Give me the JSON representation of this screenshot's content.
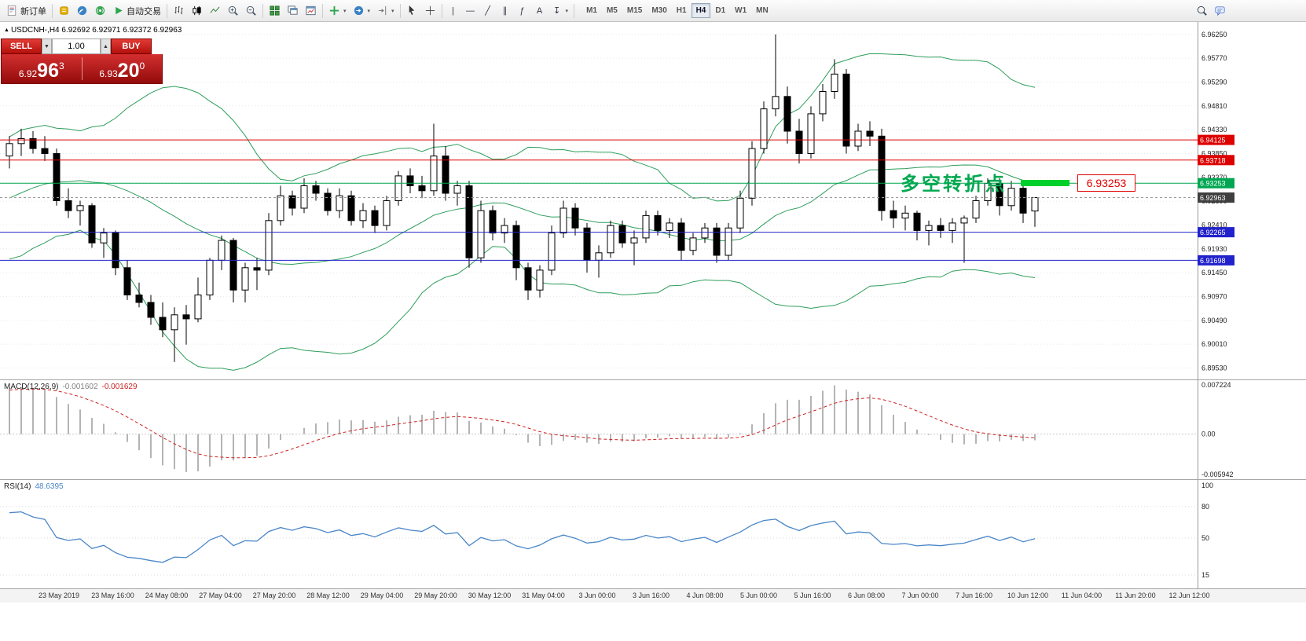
{
  "toolbar": {
    "new_order_label": "新订单",
    "autotrading_label": "自动交易",
    "caret_glyph": "▾",
    "timeframes": [
      "M1",
      "M5",
      "M15",
      "M30",
      "H1",
      "H4",
      "D1",
      "W1",
      "MN"
    ],
    "active_timeframe": "H4",
    "tool_glyphs": {
      "vertical_line": "|",
      "horizontal_line": "—",
      "trendline": "╱",
      "channel": "∥",
      "fibonacci": "ƒ",
      "text": "A",
      "arrows": "↧"
    }
  },
  "chart_header": {
    "marker": "▲",
    "text": "USDCNH-,H4  6.92692 6.92971 6.92372 6.92963"
  },
  "trade_panel": {
    "sell_label": "SELL",
    "buy_label": "BUY",
    "volume": "1.00",
    "step_down_glyph": "▼",
    "step_up_glyph": "▲",
    "sell_price_prefix": "6.92",
    "sell_price_big": "96",
    "sell_price_sup": "3",
    "buy_price_prefix": "6.93",
    "buy_price_big": "20",
    "buy_price_sup": "0"
  },
  "annotation": {
    "label": "多空转折点",
    "callout_price": "6.93253"
  },
  "indicator_labels": {
    "macd_name": "MACD(12,26,9)",
    "macd_value1": "-0.001602",
    "macd_value2": "-0.001629",
    "rsi_name": "RSI(14)",
    "rsi_value": "48.6395"
  },
  "chart_data": {
    "type": "candlestick",
    "symbol": "USDCNH-",
    "timeframe": "H4",
    "ohlc": {
      "open": 6.92692,
      "high": 6.92971,
      "low": 6.92372,
      "close": 6.92963
    },
    "price_axis": {
      "view_max": 6.965,
      "view_min": 6.893,
      "ticks": [
        6.9625,
        6.9577,
        6.9529,
        6.9481,
        6.9433,
        6.9385,
        6.9337,
        6.9289,
        6.9241,
        6.9193,
        6.9145,
        6.9097,
        6.9049,
        6.9001,
        6.8953
      ]
    },
    "hlines": [
      {
        "price": 6.94125,
        "label": "6.94125",
        "color": "#dd0000"
      },
      {
        "price": 6.93718,
        "label": "6.93718",
        "color": "#dd0000"
      },
      {
        "price": 6.93253,
        "label": "6.93253",
        "color": "#00a651"
      },
      {
        "price": 6.92265,
        "label": "6.92265",
        "color": "#2222cc"
      },
      {
        "price": 6.91698,
        "label": "6.91698",
        "color": "#2222cc"
      }
    ],
    "current_price": {
      "price": 6.92963,
      "label": "6.92963",
      "color": "#3f3f3f"
    },
    "bollinger": {
      "period": 20,
      "deviation": 2,
      "color": "#2e9e5b"
    },
    "candles": [
      [
        6.938,
        6.942,
        6.9355,
        6.9405
      ],
      [
        6.9405,
        6.9435,
        6.938,
        6.9415
      ],
      [
        6.9415,
        6.943,
        6.9385,
        6.9395
      ],
      [
        6.9395,
        6.942,
        6.937,
        6.9385
      ],
      [
        6.9385,
        6.9395,
        6.928,
        6.929
      ],
      [
        6.929,
        6.9315,
        6.9255,
        6.927
      ],
      [
        6.927,
        6.929,
        6.924,
        6.928
      ],
      [
        6.928,
        6.9285,
        6.9195,
        6.9205
      ],
      [
        6.9205,
        6.9235,
        6.9175,
        6.9225
      ],
      [
        6.9225,
        6.923,
        6.914,
        6.9155
      ],
      [
        6.9155,
        6.917,
        6.909,
        6.91
      ],
      [
        6.91,
        6.9125,
        6.9075,
        6.9085
      ],
      [
        6.9085,
        6.91,
        6.904,
        6.9055
      ],
      [
        6.9055,
        6.9085,
        6.9015,
        6.903
      ],
      [
        6.903,
        6.9075,
        6.8965,
        6.906
      ],
      [
        6.906,
        6.908,
        6.9,
        6.9052
      ],
      [
        6.9052,
        6.9135,
        6.9045,
        6.91
      ],
      [
        6.91,
        6.9175,
        6.909,
        6.917
      ],
      [
        6.917,
        6.922,
        6.915,
        6.921
      ],
      [
        6.921,
        6.9215,
        6.9085,
        6.911
      ],
      [
        6.911,
        6.9165,
        6.9085,
        6.9155
      ],
      [
        6.9155,
        6.9175,
        6.911,
        6.915
      ],
      [
        6.915,
        6.9265,
        6.914,
        6.925
      ],
      [
        6.925,
        6.932,
        6.924,
        6.93
      ],
      [
        6.93,
        6.931,
        6.926,
        6.9275
      ],
      [
        6.9275,
        6.9335,
        6.9265,
        6.932
      ],
      [
        6.932,
        6.933,
        6.929,
        6.9305
      ],
      [
        6.9305,
        6.9315,
        6.926,
        6.927
      ],
      [
        6.927,
        6.9315,
        6.9255,
        6.93
      ],
      [
        6.93,
        6.931,
        6.924,
        6.925
      ],
      [
        6.925,
        6.9285,
        6.9235,
        6.927
      ],
      [
        6.927,
        6.928,
        6.9225,
        6.924
      ],
      [
        6.924,
        6.93,
        6.923,
        6.929
      ],
      [
        6.929,
        6.935,
        6.928,
        6.934
      ],
      [
        6.934,
        6.9355,
        6.9305,
        6.932
      ],
      [
        6.932,
        6.934,
        6.9295,
        6.931
      ],
      [
        6.931,
        6.9445,
        6.93,
        6.938
      ],
      [
        6.938,
        6.94,
        6.929,
        6.9305
      ],
      [
        6.9305,
        6.933,
        6.928,
        6.932
      ],
      [
        6.932,
        6.933,
        6.9155,
        6.9175
      ],
      [
        6.9175,
        6.929,
        6.9165,
        6.927
      ],
      [
        6.927,
        6.928,
        6.921,
        6.9225
      ],
      [
        6.9225,
        6.9255,
        6.9205,
        6.924
      ],
      [
        6.924,
        6.925,
        6.913,
        6.9155
      ],
      [
        6.9155,
        6.9165,
        6.909,
        6.911
      ],
      [
        6.911,
        6.916,
        6.9095,
        6.915
      ],
      [
        6.915,
        6.924,
        6.914,
        6.9225
      ],
      [
        6.9225,
        6.929,
        6.9215,
        6.9275
      ],
      [
        6.9275,
        6.9285,
        6.922,
        6.9235
      ],
      [
        6.9235,
        6.9245,
        6.9145,
        6.917
      ],
      [
        6.917,
        6.92,
        6.9135,
        6.9185
      ],
      [
        6.9185,
        6.925,
        6.9175,
        6.924
      ],
      [
        6.924,
        6.925,
        6.9195,
        6.9205
      ],
      [
        6.9205,
        6.923,
        6.916,
        6.9215
      ],
      [
        6.9215,
        6.927,
        6.9205,
        6.926
      ],
      [
        6.926,
        6.927,
        6.922,
        6.923
      ],
      [
        6.923,
        6.9255,
        6.9215,
        6.9245
      ],
      [
        6.9245,
        6.9255,
        6.917,
        6.919
      ],
      [
        6.919,
        6.9225,
        6.918,
        6.9215
      ],
      [
        6.9215,
        6.9245,
        6.9205,
        6.9235
      ],
      [
        6.9235,
        6.9245,
        6.9165,
        6.918
      ],
      [
        6.918,
        6.9245,
        6.917,
        6.9235
      ],
      [
        6.9235,
        6.931,
        6.9225,
        6.9295
      ],
      [
        6.9295,
        6.941,
        6.928,
        6.9395
      ],
      [
        6.9395,
        6.949,
        6.9385,
        6.9475
      ],
      [
        6.9475,
        6.9625,
        6.946,
        6.95
      ],
      [
        6.95,
        6.952,
        6.9405,
        6.943
      ],
      [
        6.943,
        6.9455,
        6.9365,
        6.9385
      ],
      [
        6.9385,
        6.948,
        6.9375,
        6.9465
      ],
      [
        6.9465,
        6.9525,
        6.945,
        6.951
      ],
      [
        6.951,
        6.9575,
        6.9495,
        6.9545
      ],
      [
        6.9545,
        6.9555,
        6.9385,
        6.94
      ],
      [
        6.94,
        6.9445,
        6.939,
        6.943
      ],
      [
        6.943,
        6.945,
        6.94,
        6.942
      ],
      [
        6.942,
        6.9435,
        6.925,
        6.927
      ],
      [
        6.927,
        6.929,
        6.9235,
        6.9255
      ],
      [
        6.9255,
        6.928,
        6.923,
        6.9265
      ],
      [
        6.9265,
        6.927,
        6.921,
        6.923
      ],
      [
        6.923,
        6.925,
        6.92,
        6.924
      ],
      [
        6.924,
        6.9255,
        6.9215,
        6.923
      ],
      [
        6.923,
        6.9255,
        6.9205,
        6.9245
      ],
      [
        6.9245,
        6.926,
        6.9165,
        6.9255
      ],
      [
        6.9255,
        6.93,
        6.9245,
        6.929
      ],
      [
        6.929,
        6.9335,
        6.928,
        6.9325
      ],
      [
        6.9325,
        6.9335,
        6.926,
        6.928
      ],
      [
        6.928,
        6.933,
        6.927,
        6.9315
      ],
      [
        6.9315,
        6.932,
        6.9245,
        6.9265
      ],
      [
        6.92692,
        6.92971,
        6.92372,
        6.92963
      ]
    ],
    "macd": {
      "params": "12,26,9",
      "axis_ticks": [
        "0.007224",
        "0.00",
        "-0.005942"
      ],
      "view_max": 0.007224,
      "view_min": -0.005942,
      "value_main": -0.001602,
      "value_signal": -0.001629
    },
    "rsi": {
      "period": 14,
      "value": 48.6395,
      "axis_ticks": [
        100,
        80,
        50,
        15
      ]
    },
    "time_axis": [
      "23 May 2019",
      "23 May 16:00",
      "24 May 08:00",
      "27 May 04:00",
      "27 May 20:00",
      "28 May 12:00",
      "29 May 04:00",
      "29 May 20:00",
      "30 May 12:00",
      "31 May 04:00",
      "3 Jun 00:00",
      "3 Jun 16:00",
      "4 Jun 08:00",
      "5 Jun 00:00",
      "5 Jun 16:00",
      "6 Jun 08:00",
      "7 Jun 00:00",
      "7 Jun 16:00",
      "10 Jun 12:00",
      "11 Jun 04:00",
      "11 Jun 20:00",
      "12 Jun 12:00"
    ]
  }
}
